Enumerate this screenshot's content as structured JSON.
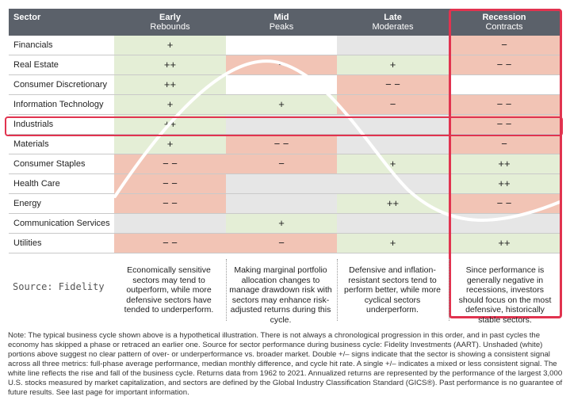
{
  "header": {
    "sector_label": "Sector",
    "phases": [
      {
        "name": "Early",
        "sub": "Rebounds"
      },
      {
        "name": "Mid",
        "sub": "Peaks"
      },
      {
        "name": "Late",
        "sub": "Moderates"
      },
      {
        "name": "Recession",
        "sub": "Contracts"
      }
    ]
  },
  "rows": [
    {
      "sector": "Financials",
      "cells": [
        {
          "v": "+",
          "c": "g"
        },
        {
          "v": "",
          "c": "w"
        },
        {
          "v": "",
          "c": "n"
        },
        {
          "v": "−",
          "c": "r"
        }
      ]
    },
    {
      "sector": "Real Estate",
      "cells": [
        {
          "v": "++",
          "c": "g"
        },
        {
          "v": "−",
          "c": "r"
        },
        {
          "v": "+",
          "c": "g"
        },
        {
          "v": "− −",
          "c": "r"
        }
      ]
    },
    {
      "sector": "Consumer Discretionary",
      "cells": [
        {
          "v": "++",
          "c": "g"
        },
        {
          "v": "",
          "c": "w"
        },
        {
          "v": "− −",
          "c": "r"
        },
        {
          "v": "",
          "c": "w"
        }
      ]
    },
    {
      "sector": "Information Technology",
      "cells": [
        {
          "v": "+",
          "c": "g"
        },
        {
          "v": "+",
          "c": "g"
        },
        {
          "v": "−",
          "c": "r"
        },
        {
          "v": "− −",
          "c": "r"
        }
      ]
    },
    {
      "sector": "Industrials",
      "cells": [
        {
          "v": "++",
          "c": "g"
        },
        {
          "v": "",
          "c": "n"
        },
        {
          "v": "",
          "c": "n"
        },
        {
          "v": "− −",
          "c": "r"
        }
      ]
    },
    {
      "sector": "Materials",
      "cells": [
        {
          "v": "+",
          "c": "g"
        },
        {
          "v": "− −",
          "c": "r"
        },
        {
          "v": "",
          "c": "n"
        },
        {
          "v": "−",
          "c": "r"
        }
      ]
    },
    {
      "sector": "Consumer Staples",
      "cells": [
        {
          "v": "− −",
          "c": "r"
        },
        {
          "v": "−",
          "c": "r"
        },
        {
          "v": "+",
          "c": "g"
        },
        {
          "v": "++",
          "c": "g"
        }
      ]
    },
    {
      "sector": "Health Care",
      "cells": [
        {
          "v": "− −",
          "c": "r"
        },
        {
          "v": "",
          "c": "n"
        },
        {
          "v": "",
          "c": "n"
        },
        {
          "v": "++",
          "c": "g"
        }
      ]
    },
    {
      "sector": "Energy",
      "cells": [
        {
          "v": "− −",
          "c": "r"
        },
        {
          "v": "",
          "c": "n"
        },
        {
          "v": "++",
          "c": "g"
        },
        {
          "v": "− −",
          "c": "r"
        }
      ]
    },
    {
      "sector": "Communication Services",
      "cells": [
        {
          "v": "",
          "c": "n"
        },
        {
          "v": "+",
          "c": "g"
        },
        {
          "v": "",
          "c": "n"
        },
        {
          "v": "",
          "c": "n"
        }
      ]
    },
    {
      "sector": "Utilities",
      "cells": [
        {
          "v": "− −",
          "c": "r"
        },
        {
          "v": "−",
          "c": "r"
        },
        {
          "v": "+",
          "c": "g"
        },
        {
          "v": "++",
          "c": "g"
        }
      ]
    }
  ],
  "descriptions": [
    "Economically sensitive sectors may tend to outperform, while more defensive sectors have tended to underperform.",
    "Making marginal portfolio allocation changes to manage drawdown risk with sectors may enhance risk-adjusted returns during this cycle.",
    "Defensive and inflation-resistant sectors tend to perform better, while more cyclical sectors underperform.",
    "Since performance is generally negative in recessions, investors should focus on the most defensive, historically stable sectors."
  ],
  "source": "Source: Fidelity",
  "note": "Note: The typical business cycle shown above is a hypothetical illustration. There is not always a chronological progression in this order, and in past cycles the economy has skipped a phase or retraced an earlier one. Source for sector performance during business cycle: Fidelity Investments (AART). Unshaded (white) portions above suggest no clear pattern of over- or underperformance vs. broader market. Double +/– signs indicate that the sector is showing a consistent signal across all three metrics: full-phase average performance, median monthly difference, and cycle hit rate. A single +/– indicates a mixed or less consistent signal. The white line reflects the rise and fall of the business cycle. Returns data from 1962 to 2021. Annualized returns are represented by the performance of the largest 3,000 U.S. stocks measured by market capitalization, and sectors are defined by the Global Industry Classification Standard (GICS®). Past performance is no guarantee of future results. See last page for important information.",
  "colors": {
    "header_bg": "#5b616a",
    "positive": "#e4eed6",
    "negative": "#f2c4b5",
    "neutral": "#e6e6e6",
    "highlight": "#e1334f"
  }
}
